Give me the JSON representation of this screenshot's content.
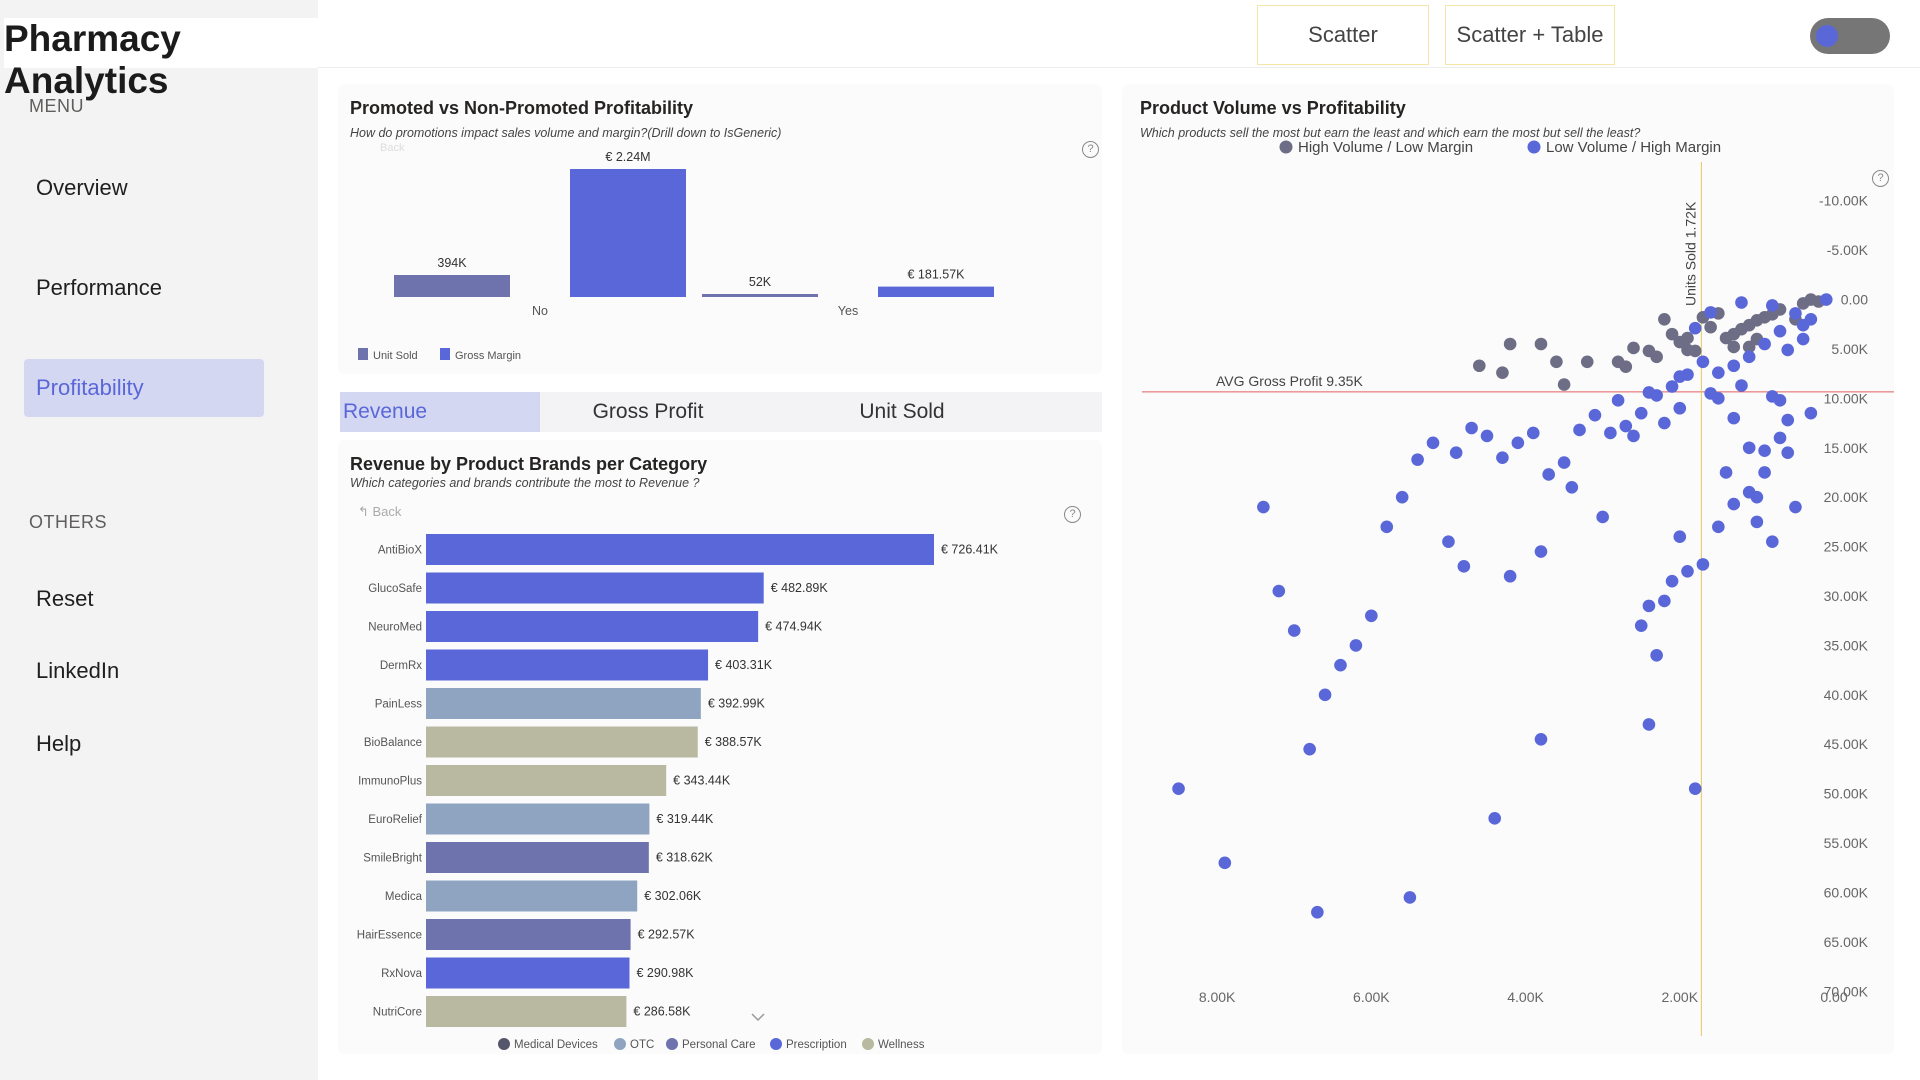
{
  "app": {
    "title": "Pharmacy Analytics"
  },
  "sidebar": {
    "menu_label": "MENU",
    "others_label": "OTHERS",
    "menu_items": [
      {
        "label": "Overview"
      },
      {
        "label": "Performance"
      },
      {
        "label": "Profitability",
        "active": true
      }
    ],
    "other_items": [
      {
        "label": "Reset"
      },
      {
        "label": "LinkedIn"
      },
      {
        "label": "Help"
      }
    ]
  },
  "topbar": {
    "scatter_label": "Scatter",
    "scatter_table_label": "Scatter + Table",
    "toggle_on": true
  },
  "colors": {
    "accent": "#5a67d8",
    "unit_sold": "#6e72ad",
    "medical_devices": "#55566b",
    "otc": "#8ea4c0",
    "personal_care": "#6e72ad",
    "prescription": "#5a67d8",
    "wellness": "#b8b9a0",
    "high_volume": "#6d6e86",
    "low_volume": "#5a67d8"
  },
  "promo_card": {
    "title": "Promoted vs Non-Promoted Profitability",
    "subtitle": "How do promotions impact sales volume and margin?(Drill down to IsGeneric)",
    "back_label": "Back",
    "help": "?",
    "legend": [
      "Unit Sold",
      "Gross Margin"
    ]
  },
  "tabs": [
    {
      "label": "Revenue",
      "active": true
    },
    {
      "label": "Gross Profit"
    },
    {
      "label": "Unit Sold"
    }
  ],
  "brand_card": {
    "title": "Revenue by Product Brands per Category",
    "subtitle": "Which categories and brands contribute the most to Revenue ?",
    "back_label": "Back",
    "help": "?"
  },
  "scatter_card": {
    "title": "Product Volume vs Profitability",
    "subtitle": "Which products sell the most but earn the least and which earn the most but sell the least?",
    "help": "?",
    "avg_line_label": "AVG Gross Profit 9.35K",
    "units_line_label": "Units Sold 1.72K"
  },
  "chart_data": [
    {
      "type": "bar",
      "categories": [
        "No",
        "Yes"
      ],
      "series": [
        {
          "name": "Unit Sold",
          "values": [
            394000,
            52000
          ],
          "labels": [
            "394K",
            "52K"
          ]
        },
        {
          "name": "Gross Margin",
          "values": [
            2240000,
            181570
          ],
          "labels": [
            "€ 2.24M",
            "€ 181.57K"
          ]
        }
      ],
      "legend_position": "bottom-left"
    },
    {
      "type": "bar",
      "orientation": "horizontal",
      "categories": [
        "AntiBioX",
        "GlucoSafe",
        "NeuroMed",
        "DermRx",
        "PainLess",
        "BioBalance",
        "ImmunoPlus",
        "EuroRelief",
        "SmileBright",
        "Medica",
        "HairEssence",
        "RxNova",
        "NutriCore"
      ],
      "values": [
        726410,
        482890,
        474940,
        403310,
        392990,
        388570,
        343440,
        319440,
        318620,
        302060,
        292570,
        290980,
        286580
      ],
      "labels": [
        "€ 726.41K",
        "€ 482.89K",
        "€ 474.94K",
        "€ 403.31K",
        "€ 392.99K",
        "€ 388.57K",
        "€ 343.44K",
        "€ 319.44K",
        "€ 318.62K",
        "€ 302.06K",
        "€ 292.57K",
        "€ 290.98K",
        "€ 286.58K"
      ],
      "category_of": [
        "Prescription",
        "Prescription",
        "Prescription",
        "Prescription",
        "OTC",
        "Wellness",
        "Wellness",
        "OTC",
        "Personal Care",
        "OTC",
        "Personal Care",
        "Prescription",
        "Wellness"
      ],
      "legend": [
        "Medical Devices",
        "OTC",
        "Personal Care",
        "Prescription",
        "Wellness"
      ],
      "legend_position": "bottom"
    },
    {
      "type": "scatter",
      "xlim": [
        0,
        9000
      ],
      "x_reversed": true,
      "ylim": [
        -12500,
        72500
      ],
      "y_reversed": true,
      "x_ticks": [
        "8.00K",
        "6.00K",
        "4.00K",
        "2.00K",
        "0.00"
      ],
      "x_tick_values": [
        8000,
        6000,
        4000,
        2000,
        0
      ],
      "y_ticks": [
        "-10.00K",
        "-5.00K",
        "0.00",
        "5.00K",
        "10.00K",
        "15.00K",
        "20.00K",
        "25.00K",
        "30.00K",
        "35.00K",
        "40.00K",
        "45.00K",
        "50.00K",
        "55.00K",
        "60.00K",
        "65.00K",
        "70.00K"
      ],
      "y_tick_values": [
        -10000,
        -5000,
        0,
        5000,
        10000,
        15000,
        20000,
        25000,
        30000,
        35000,
        40000,
        45000,
        50000,
        55000,
        60000,
        65000,
        70000
      ],
      "avg_y": 9350,
      "avg_x": 1720,
      "legend_position": "top",
      "series": [
        {
          "name": "High Volume / Low Margin",
          "points": [
            [
              2200,
              2000
            ],
            [
              2100,
              3500
            ],
            [
              1700,
              1800
            ],
            [
              1500,
              1400
            ],
            [
              1300,
              3500
            ],
            [
              1100,
              2600
            ],
            [
              900,
              1800
            ],
            [
              700,
              1000
            ],
            [
              500,
              2000
            ],
            [
              1900,
              3900
            ],
            [
              2600,
              4900
            ],
            [
              1000,
              2100
            ],
            [
              300,
              0
            ],
            [
              200,
              200
            ],
            [
              400,
              400
            ],
            [
              800,
              1500
            ],
            [
              1200,
              3000
            ],
            [
              1400,
              3900
            ],
            [
              1600,
              2800
            ],
            [
              2400,
              5200
            ],
            [
              2000,
              4300
            ],
            [
              1800,
              5200
            ],
            [
              2800,
              6300
            ],
            [
              3200,
              6300
            ],
            [
              3600,
              6300
            ],
            [
              3800,
              4500
            ],
            [
              4200,
              4500
            ],
            [
              4600,
              6700
            ],
            [
              4300,
              7400
            ],
            [
              3500,
              8600
            ],
            [
              2700,
              6800
            ],
            [
              2300,
              5800
            ],
            [
              1900,
              5100
            ],
            [
              1300,
              4800
            ],
            [
              1000,
              4000
            ],
            [
              1100,
              4800
            ]
          ]
        },
        {
          "name": "Low Volume / High Margin",
          "points": [
            [
              100,
              0
            ],
            [
              300,
              2000
            ],
            [
              500,
              1400
            ],
            [
              700,
              3200
            ],
            [
              900,
              4500
            ],
            [
              1100,
              5800
            ],
            [
              1300,
              6700
            ],
            [
              1500,
              7400
            ],
            [
              1700,
              6300
            ],
            [
              1900,
              7600
            ],
            [
              2100,
              8800
            ],
            [
              2300,
              9700
            ],
            [
              2500,
              11500
            ],
            [
              2700,
              12800
            ],
            [
              2900,
              13500
            ],
            [
              3100,
              11700
            ],
            [
              3300,
              13200
            ],
            [
              3500,
              16500
            ],
            [
              3700,
              17700
            ],
            [
              3900,
              13500
            ],
            [
              4100,
              14500
            ],
            [
              4300,
              16000
            ],
            [
              4500,
              13800
            ],
            [
              4700,
              13000
            ],
            [
              4900,
              15500
            ],
            [
              5200,
              14500
            ],
            [
              5400,
              16200
            ],
            [
              5600,
              20000
            ],
            [
              5800,
              23000
            ],
            [
              6000,
              32000
            ],
            [
              6200,
              35000
            ],
            [
              6400,
              37000
            ],
            [
              6600,
              40000
            ],
            [
              6800,
              45500
            ],
            [
              7000,
              33500
            ],
            [
              7200,
              29500
            ],
            [
              7400,
              21000
            ],
            [
              8500,
              49500
            ],
            [
              7900,
              57000
            ],
            [
              6700,
              62000
            ],
            [
              5500,
              60500
            ],
            [
              4400,
              52500
            ],
            [
              3800,
              44500
            ],
            [
              2400,
              43000
            ],
            [
              1800,
              49500
            ],
            [
              2300,
              36000
            ],
            [
              2100,
              28500
            ],
            [
              1900,
              27500
            ],
            [
              1700,
              26800
            ],
            [
              1500,
              23000
            ],
            [
              1300,
              20700
            ],
            [
              1100,
              19500
            ],
            [
              900,
              15300
            ],
            [
              700,
              14000
            ],
            [
              500,
              21000
            ],
            [
              300,
              11500
            ],
            [
              700,
              10200
            ],
            [
              1400,
              17500
            ],
            [
              2000,
              24000
            ],
            [
              2400,
              31000
            ],
            [
              2500,
              33000
            ],
            [
              2200,
              30500
            ],
            [
              3000,
              22000
            ],
            [
              3400,
              19000
            ],
            [
              3800,
              25500
            ],
            [
              4200,
              28000
            ],
            [
              4800,
              27000
            ],
            [
              5000,
              24500
            ],
            [
              1000,
              20000
            ],
            [
              600,
              12200
            ],
            [
              800,
              9800
            ],
            [
              1200,
              8700
            ],
            [
              1600,
              9500
            ],
            [
              2000,
              11000
            ],
            [
              2200,
              12500
            ],
            [
              2600,
              13800
            ],
            [
              600,
              5100
            ],
            [
              400,
              2600
            ],
            [
              800,
              600
            ],
            [
              1200,
              300
            ],
            [
              1600,
              1300
            ],
            [
              1800,
              2900
            ],
            [
              2000,
              7800
            ],
            [
              2400,
              9400
            ],
            [
              2800,
              10200
            ],
            [
              1500,
              10000
            ],
            [
              1300,
              12000
            ],
            [
              1100,
              15000
            ],
            [
              900,
              17500
            ],
            [
              1000,
              22500
            ],
            [
              800,
              24500
            ],
            [
              600,
              15500
            ],
            [
              400,
              4000
            ]
          ]
        }
      ]
    }
  ]
}
